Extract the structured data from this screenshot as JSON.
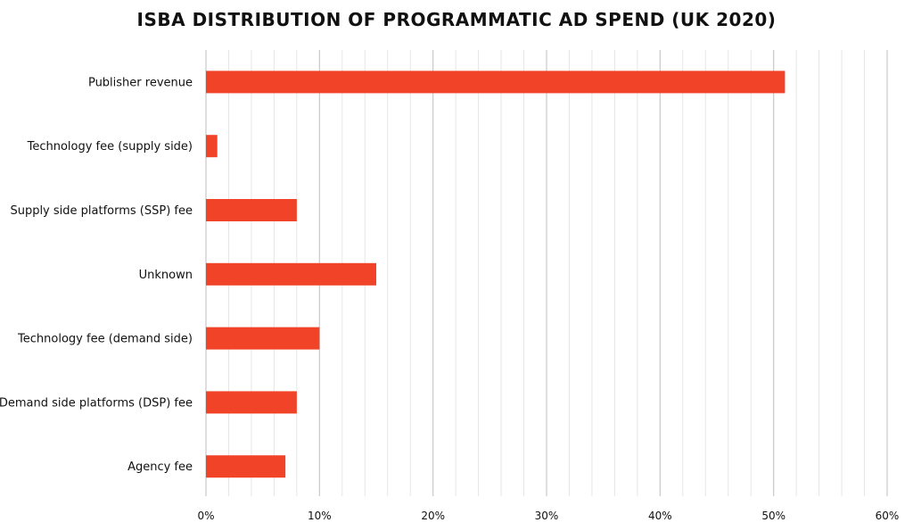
{
  "chart_data": {
    "type": "bar",
    "orientation": "horizontal",
    "title": "ISBA DISTRIBUTION OF PROGRAMMATIC AD SPEND (UK 2020)",
    "categories": [
      "Publisher revenue",
      "Technology fee (supply side)",
      "Supply side platforms (SSP) fee",
      "Unknown",
      "Technology fee (demand side)",
      "Demand side platforms (DSP) fee",
      "Agency fee"
    ],
    "values": [
      51,
      1,
      8,
      15,
      10,
      8,
      7
    ],
    "xlim": [
      0,
      60
    ],
    "x_ticks": [
      "0%",
      "10%",
      "20%",
      "30%",
      "40%",
      "50%",
      "60%"
    ],
    "grid": true,
    "bar_color": "#f04328"
  }
}
